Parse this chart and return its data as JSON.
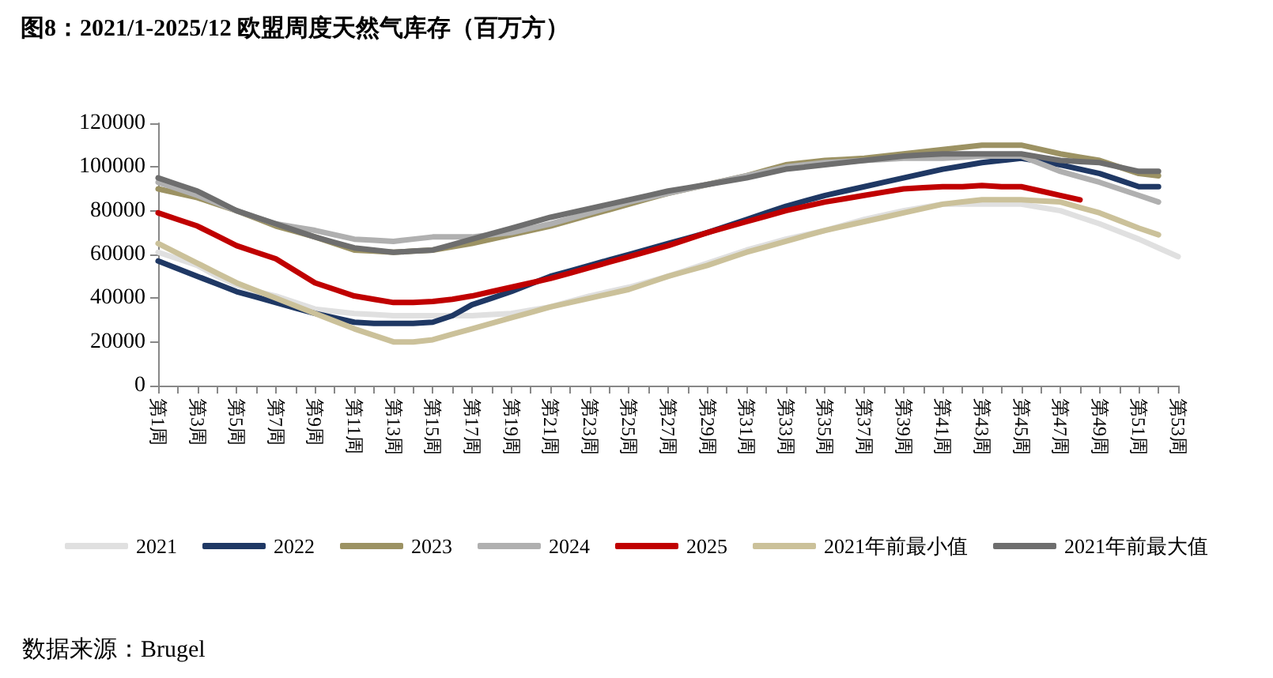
{
  "chart_data": {
    "type": "line",
    "title": "图8：2021/1-2025/12 欧盟周度天然气库存（百万方）",
    "categories": [
      "第1周",
      null,
      "第3周",
      null,
      "第5周",
      null,
      "第7周",
      null,
      "第9周",
      null,
      "第11周",
      null,
      "第13周",
      null,
      "第15周",
      null,
      "第17周",
      null,
      "第19周",
      null,
      "第21周",
      null,
      "第23周",
      null,
      "第25周",
      null,
      "第27周",
      null,
      "第29周",
      null,
      "第31周",
      null,
      "第33周",
      null,
      "第35周",
      null,
      "第37周",
      null,
      "第39周",
      null,
      "第41周",
      null,
      "第43周",
      null,
      "第45周",
      null,
      "第47周",
      null,
      "第49周",
      null,
      "第51周",
      null,
      "第53周"
    ],
    "series": [
      {
        "name": "2021",
        "color": "#e0e0e0",
        "values": [
          61000,
          58000,
          55000,
          50000,
          46000,
          43000,
          41000,
          38000,
          35000,
          34000,
          33000,
          32500,
          32000,
          32000,
          32000,
          32000,
          32000,
          32500,
          33000,
          34500,
          36000,
          38500,
          41000,
          43000,
          45000,
          47500,
          50000,
          53000,
          56000,
          59000,
          62000,
          64500,
          67000,
          69000,
          71000,
          73500,
          76000,
          78000,
          80000,
          81500,
          83000,
          83000,
          83000,
          83000,
          83000,
          81500,
          80000,
          77000,
          74000,
          70500,
          67000,
          63000,
          59000
        ]
      },
      {
        "name": "2022",
        "color": "#1f3864",
        "values": [
          57000,
          53500,
          50000,
          46500,
          43000,
          40500,
          38000,
          35500,
          33000,
          31000,
          29000,
          28500,
          28500,
          28500,
          29000,
          32000,
          37000,
          40000,
          43000,
          46500,
          50000,
          52500,
          55000,
          57500,
          60000,
          62500,
          65000,
          67500,
          70000,
          73000,
          76000,
          79000,
          82000,
          84500,
          87000,
          89000,
          91000,
          93000,
          95000,
          97000,
          99000,
          100500,
          102000,
          103000,
          104000,
          102500,
          101000,
          99000,
          97000,
          94000,
          91000,
          91000,
          null
        ]
      },
      {
        "name": "2023",
        "color": "#9c9263",
        "values": [
          90000,
          88000,
          86000,
          83000,
          80000,
          76500,
          73000,
          70500,
          68000,
          65000,
          62000,
          61500,
          61000,
          61500,
          62000,
          63500,
          65000,
          67000,
          69000,
          71000,
          73000,
          75500,
          78000,
          80500,
          83000,
          85500,
          88000,
          90000,
          92000,
          94000,
          96000,
          98500,
          101000,
          102000,
          103000,
          103500,
          104000,
          105000,
          106000,
          107000,
          108000,
          109000,
          110000,
          110000,
          110000,
          108000,
          106000,
          104500,
          103000,
          100000,
          97000,
          96000,
          null
        ]
      },
      {
        "name": "2024",
        "color": "#b0b0b0",
        "values": [
          93000,
          90000,
          87000,
          83500,
          80000,
          77000,
          74000,
          72500,
          71000,
          69000,
          67000,
          66500,
          66000,
          67000,
          68000,
          68000,
          68000,
          69000,
          70000,
          72000,
          74000,
          76500,
          79000,
          81500,
          84000,
          86000,
          88000,
          90000,
          92000,
          94000,
          96000,
          98000,
          100000,
          101000,
          102000,
          102500,
          103000,
          103500,
          104000,
          104000,
          104000,
          104500,
          105000,
          105000,
          105000,
          101500,
          98000,
          95500,
          93000,
          90000,
          87000,
          84000,
          null
        ]
      },
      {
        "name": "2025",
        "color": "#c00000",
        "values": [
          79000,
          76000,
          73000,
          68500,
          64000,
          61000,
          58000,
          52500,
          47000,
          44000,
          41000,
          39500,
          38000,
          38000,
          38500,
          39500,
          41000,
          43000,
          45000,
          47000,
          49000,
          51500,
          54000,
          56500,
          59000,
          61500,
          64000,
          67000,
          70000,
          72500,
          75000,
          77500,
          80000,
          82000,
          84000,
          85500,
          87000,
          88500,
          90000,
          90500,
          91000,
          91000,
          91500,
          91000,
          91000,
          89000,
          87000,
          85000,
          null,
          null,
          null,
          null,
          null
        ]
      },
      {
        "name": "2021年前最小值",
        "color": "#cbc19a",
        "values": [
          65000,
          60500,
          56000,
          51500,
          47000,
          43500,
          40000,
          36500,
          33000,
          29500,
          26000,
          23000,
          20000,
          20000,
          21000,
          23500,
          26000,
          28500,
          31000,
          33500,
          36000,
          38000,
          40000,
          42000,
          44000,
          47000,
          50000,
          52500,
          55000,
          58000,
          61000,
          63500,
          66000,
          68500,
          71000,
          73000,
          75000,
          77000,
          79000,
          81000,
          83000,
          84000,
          85000,
          85000,
          85000,
          84500,
          84000,
          81500,
          79000,
          75500,
          72000,
          69000,
          null
        ]
      },
      {
        "name": "2021年前最大值",
        "color": "#6e6e6e",
        "values": [
          95000,
          92000,
          89000,
          84500,
          80000,
          77000,
          74000,
          71000,
          68000,
          65500,
          63000,
          62000,
          61000,
          61500,
          62000,
          64500,
          67000,
          69500,
          72000,
          74500,
          77000,
          79000,
          81000,
          83000,
          85000,
          87000,
          89000,
          90500,
          92000,
          93500,
          95000,
          97000,
          99000,
          100000,
          101000,
          102000,
          103000,
          104000,
          105000,
          105500,
          106000,
          106000,
          106000,
          106000,
          106000,
          104500,
          103000,
          102500,
          102000,
          100000,
          98000,
          98000,
          null
        ]
      }
    ],
    "ylim": [
      0,
      120000
    ],
    "yticks": [
      0,
      20000,
      40000,
      60000,
      80000,
      100000,
      120000
    ],
    "grid": false,
    "legend": "bottom",
    "marker": "none",
    "line_style": "solid",
    "annotations": [
      "数据来源：Brugel"
    ]
  }
}
